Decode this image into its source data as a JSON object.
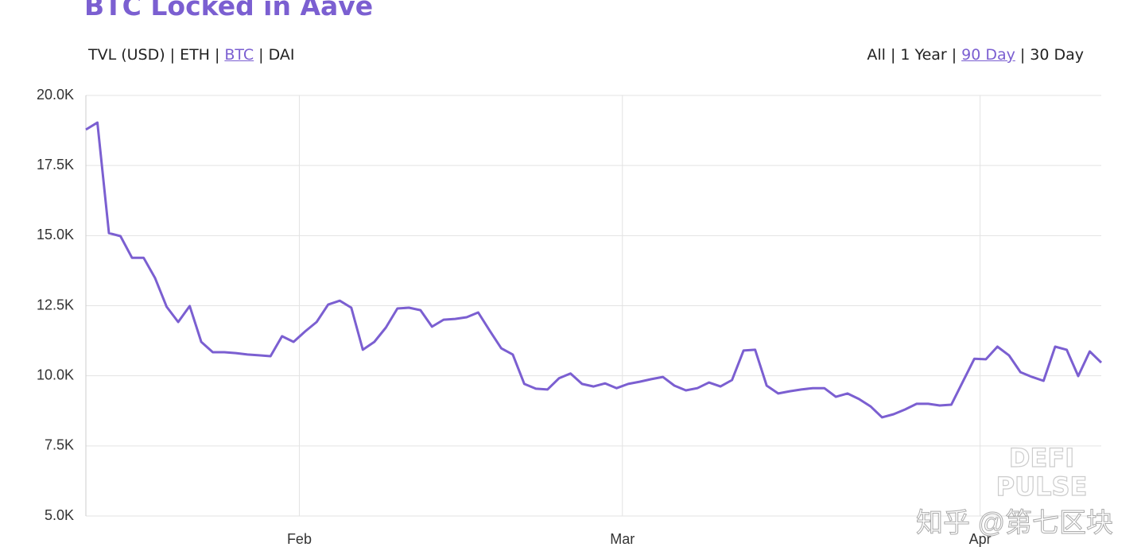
{
  "chart_data": {
    "type": "line",
    "title": "BTC Locked in Aave",
    "categories": [
      null,
      null,
      null,
      null,
      null,
      null,
      null,
      null,
      null,
      null,
      null,
      null,
      null,
      null,
      null,
      null,
      null,
      null,
      null,
      "Feb",
      null,
      null,
      null,
      null,
      null,
      null,
      null,
      null,
      null,
      null,
      null,
      null,
      null,
      null,
      null,
      null,
      null,
      null,
      null,
      null,
      null,
      null,
      null,
      null,
      null,
      null,
      null,
      "Mar",
      null,
      null,
      null,
      null,
      null,
      null,
      null,
      null,
      null,
      null,
      null,
      null,
      null,
      null,
      null,
      null,
      null,
      null,
      null,
      null,
      null,
      null,
      null,
      null,
      null,
      null,
      null,
      null,
      null,
      null,
      "Apr",
      null,
      null,
      null,
      null,
      null,
      null,
      null,
      null,
      null,
      null
    ],
    "values": [
      18780,
      19030,
      15090,
      14980,
      14210,
      14210,
      13480,
      12460,
      11920,
      12490,
      11210,
      10840,
      10840,
      10810,
      10760,
      10730,
      10700,
      11410,
      11210,
      11580,
      11920,
      12540,
      12680,
      12430,
      10930,
      11210,
      11720,
      12400,
      12430,
      12340,
      11750,
      12000,
      12030,
      12090,
      12260,
      11610,
      10980,
      10760,
      9710,
      9540,
      9510,
      9910,
      10080,
      9710,
      9620,
      9730,
      9560,
      9710,
      9790,
      9880,
      9960,
      9650,
      9480,
      9560,
      9760,
      9620,
      9850,
      10900,
      10930,
      9650,
      9370,
      9450,
      9510,
      9560,
      9560,
      9250,
      9370,
      9170,
      8910,
      8520,
      8630,
      8800,
      9000,
      9000,
      8940,
      8970,
      9790,
      10610,
      10590,
      11040,
      10730,
      10130,
      9960,
      9820,
      11040,
      10930,
      9990,
      10870,
      10470
    ],
    "color": "#7b5fd1",
    "ylim": [
      5000,
      20000
    ],
    "yticks": [
      {
        "value": 5000,
        "label": "5.0K"
      },
      {
        "value": 7500,
        "label": "7.5K"
      },
      {
        "value": 10000,
        "label": "10.0K"
      },
      {
        "value": 12500,
        "label": "12.5K"
      },
      {
        "value": 15000,
        "label": "15.0K"
      },
      {
        "value": 17500,
        "label": "17.5K"
      },
      {
        "value": 20000,
        "label": "20.0K"
      }
    ],
    "grid": true
  },
  "ui": {
    "metric_tabs": [
      "TVL (USD)",
      "ETH",
      "BTC",
      "DAI"
    ],
    "active_metric": 2,
    "range_tabs": [
      "All",
      "1 Year",
      "90 Day",
      "30 Day"
    ],
    "active_range": 2,
    "separator": "|",
    "watermark": [
      "DEFI",
      "PULSE"
    ],
    "credit": "知乎 @第七区块"
  }
}
